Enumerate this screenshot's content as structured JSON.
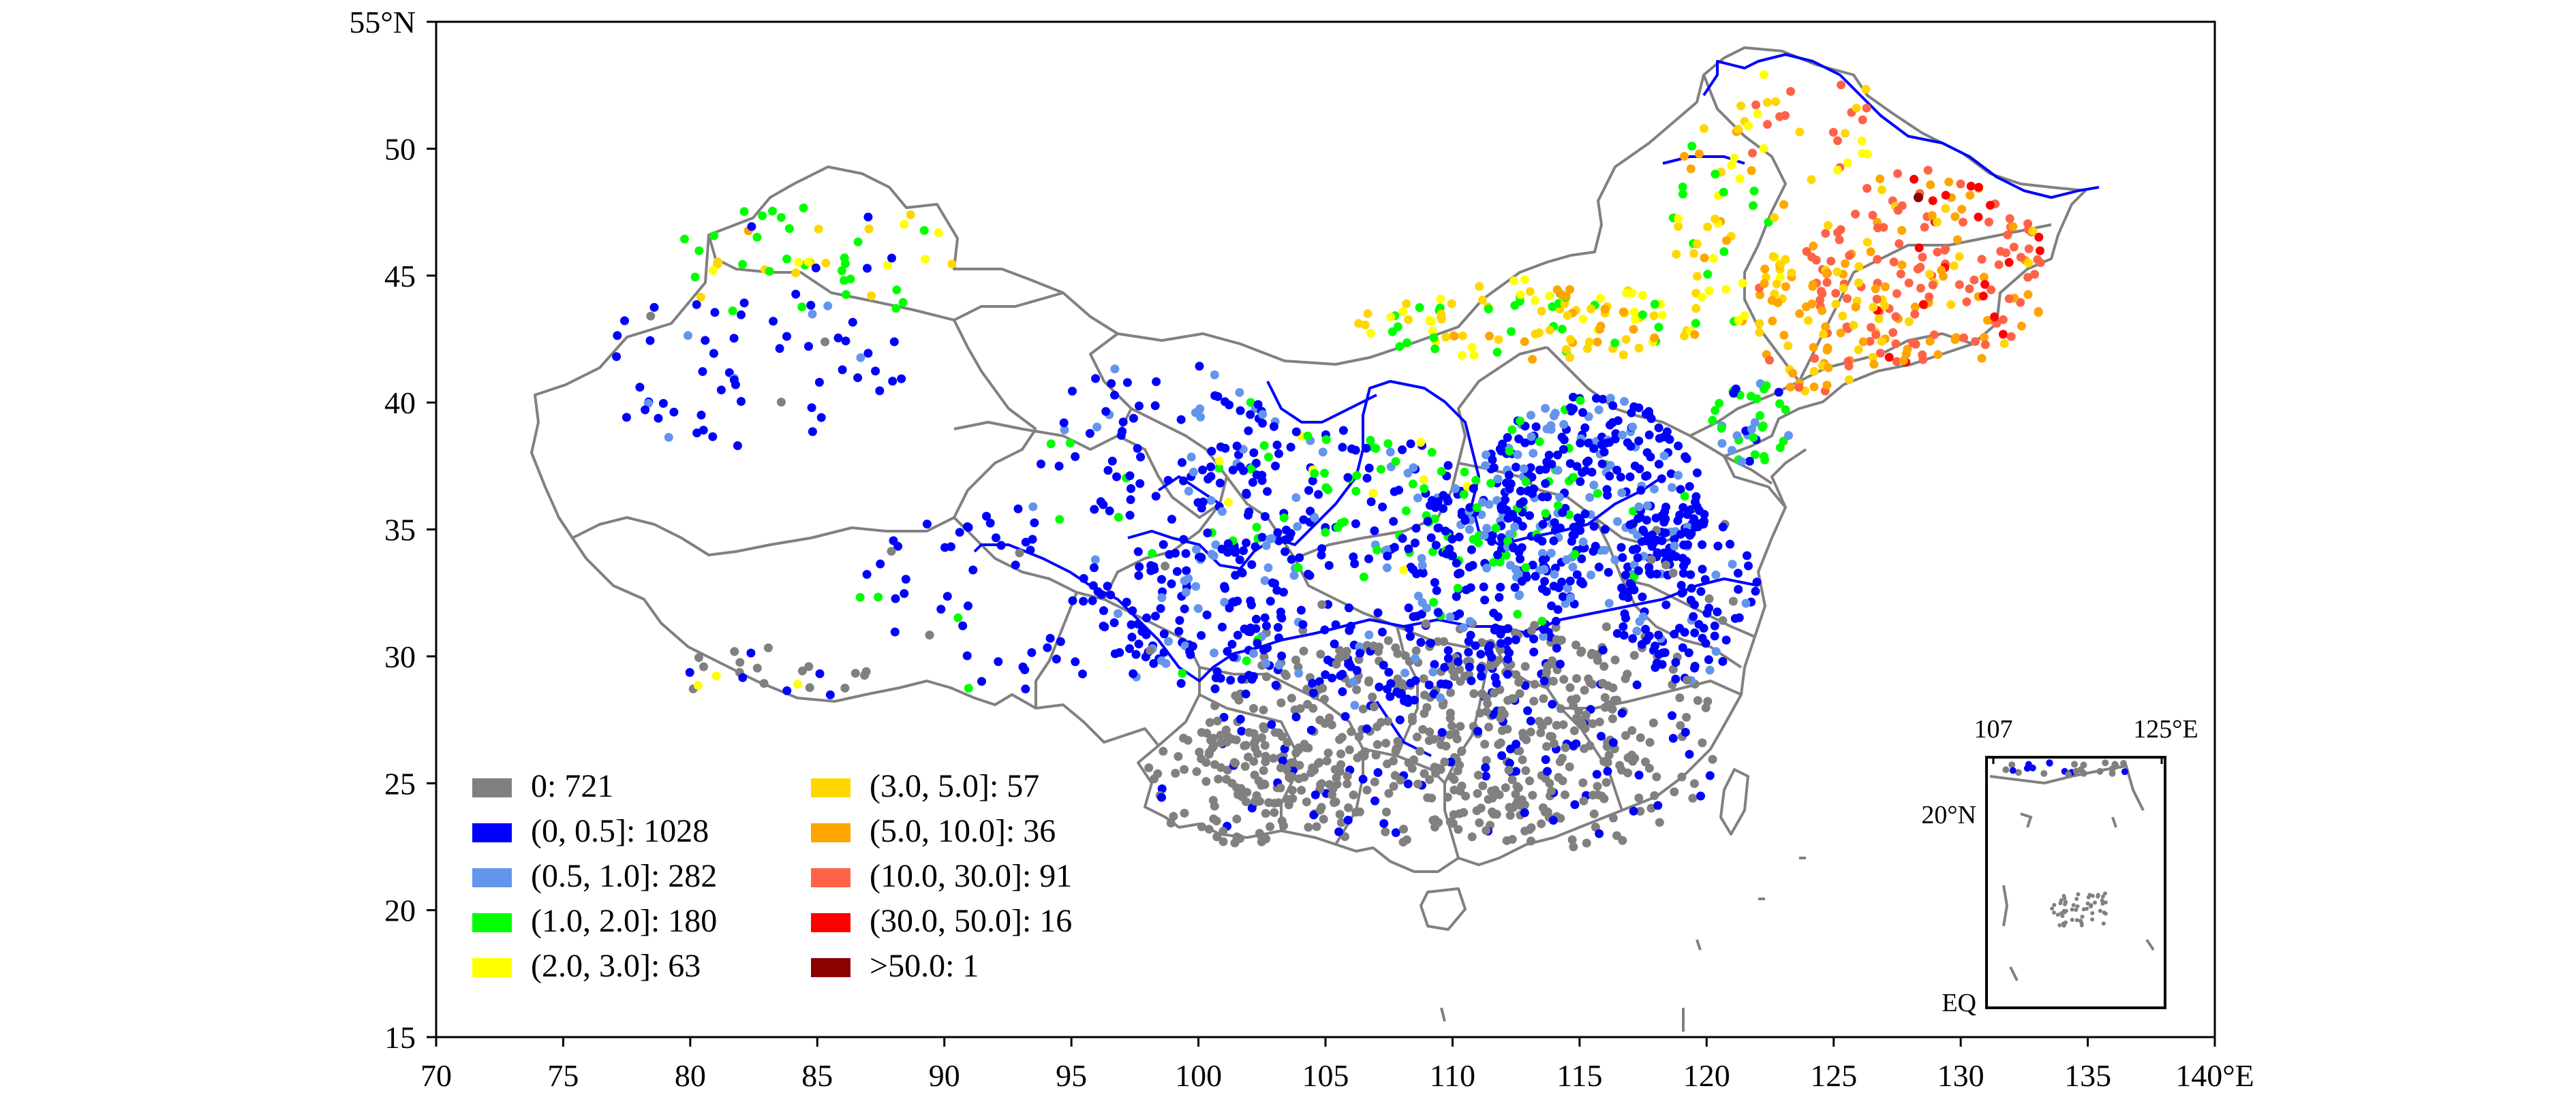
{
  "figure": {
    "x_ticks": [
      {
        "label": "70",
        "lon": 70
      },
      {
        "label": "75",
        "lon": 75
      },
      {
        "label": "80",
        "lon": 80
      },
      {
        "label": "85",
        "lon": 85
      },
      {
        "label": "90",
        "lon": 90
      },
      {
        "label": "95",
        "lon": 95
      },
      {
        "label": "100",
        "lon": 100
      },
      {
        "label": "105",
        "lon": 105
      },
      {
        "label": "110",
        "lon": 110
      },
      {
        "label": "115",
        "lon": 115
      },
      {
        "label": "120",
        "lon": 120
      },
      {
        "label": "125",
        "lon": 125
      },
      {
        "label": "130",
        "lon": 130
      },
      {
        "label": "135",
        "lon": 135
      },
      {
        "label": "140°E",
        "lon": 140
      }
    ],
    "y_ticks": [
      {
        "label": "15",
        "lat": 15
      },
      {
        "label": "20",
        "lat": 20
      },
      {
        "label": "25",
        "lat": 25
      },
      {
        "label": "30",
        "lat": 30
      },
      {
        "label": "35",
        "lat": 35
      },
      {
        "label": "40",
        "lat": 40
      },
      {
        "label": "45",
        "lat": 45
      },
      {
        "label": "50",
        "lat": 50
      },
      {
        "label": "55°N",
        "lat": 55
      }
    ],
    "xlim": [
      70,
      140
    ],
    "ylim": [
      15,
      55
    ]
  },
  "legend": {
    "items": [
      {
        "label": "0: 721",
        "color": "#808080"
      },
      {
        "label": "(0, 0.5]: 1028",
        "color": "#0000ff"
      },
      {
        "label": "(0.5, 1.0]: 282",
        "color": "#6495ed"
      },
      {
        "label": "(1.0, 2.0]: 180",
        "color": "#00ff00"
      },
      {
        "label": "(2.0, 3.0]: 63",
        "color": "#ffff00"
      },
      {
        "label": "(3.0, 5.0]: 57",
        "color": "#ffd700"
      },
      {
        "label": "(5.0, 10.0]: 36",
        "color": "#ffa500"
      },
      {
        "label": "(10.0, 30.0]: 91",
        "color": "#ff6347"
      },
      {
        "label": "(30.0, 50.0]: 16",
        "color": "#ff0000"
      },
      {
        "label": ">50.0: 1",
        "color": "#8b0000"
      }
    ]
  },
  "inset": {
    "top_left_label": "107",
    "top_right_label": "125°E",
    "lat_label": "20°N",
    "bottom_label": "EQ"
  },
  "colors": {
    "boundary": "#808080",
    "river": "#0000ff",
    "frame": "#000000"
  }
}
